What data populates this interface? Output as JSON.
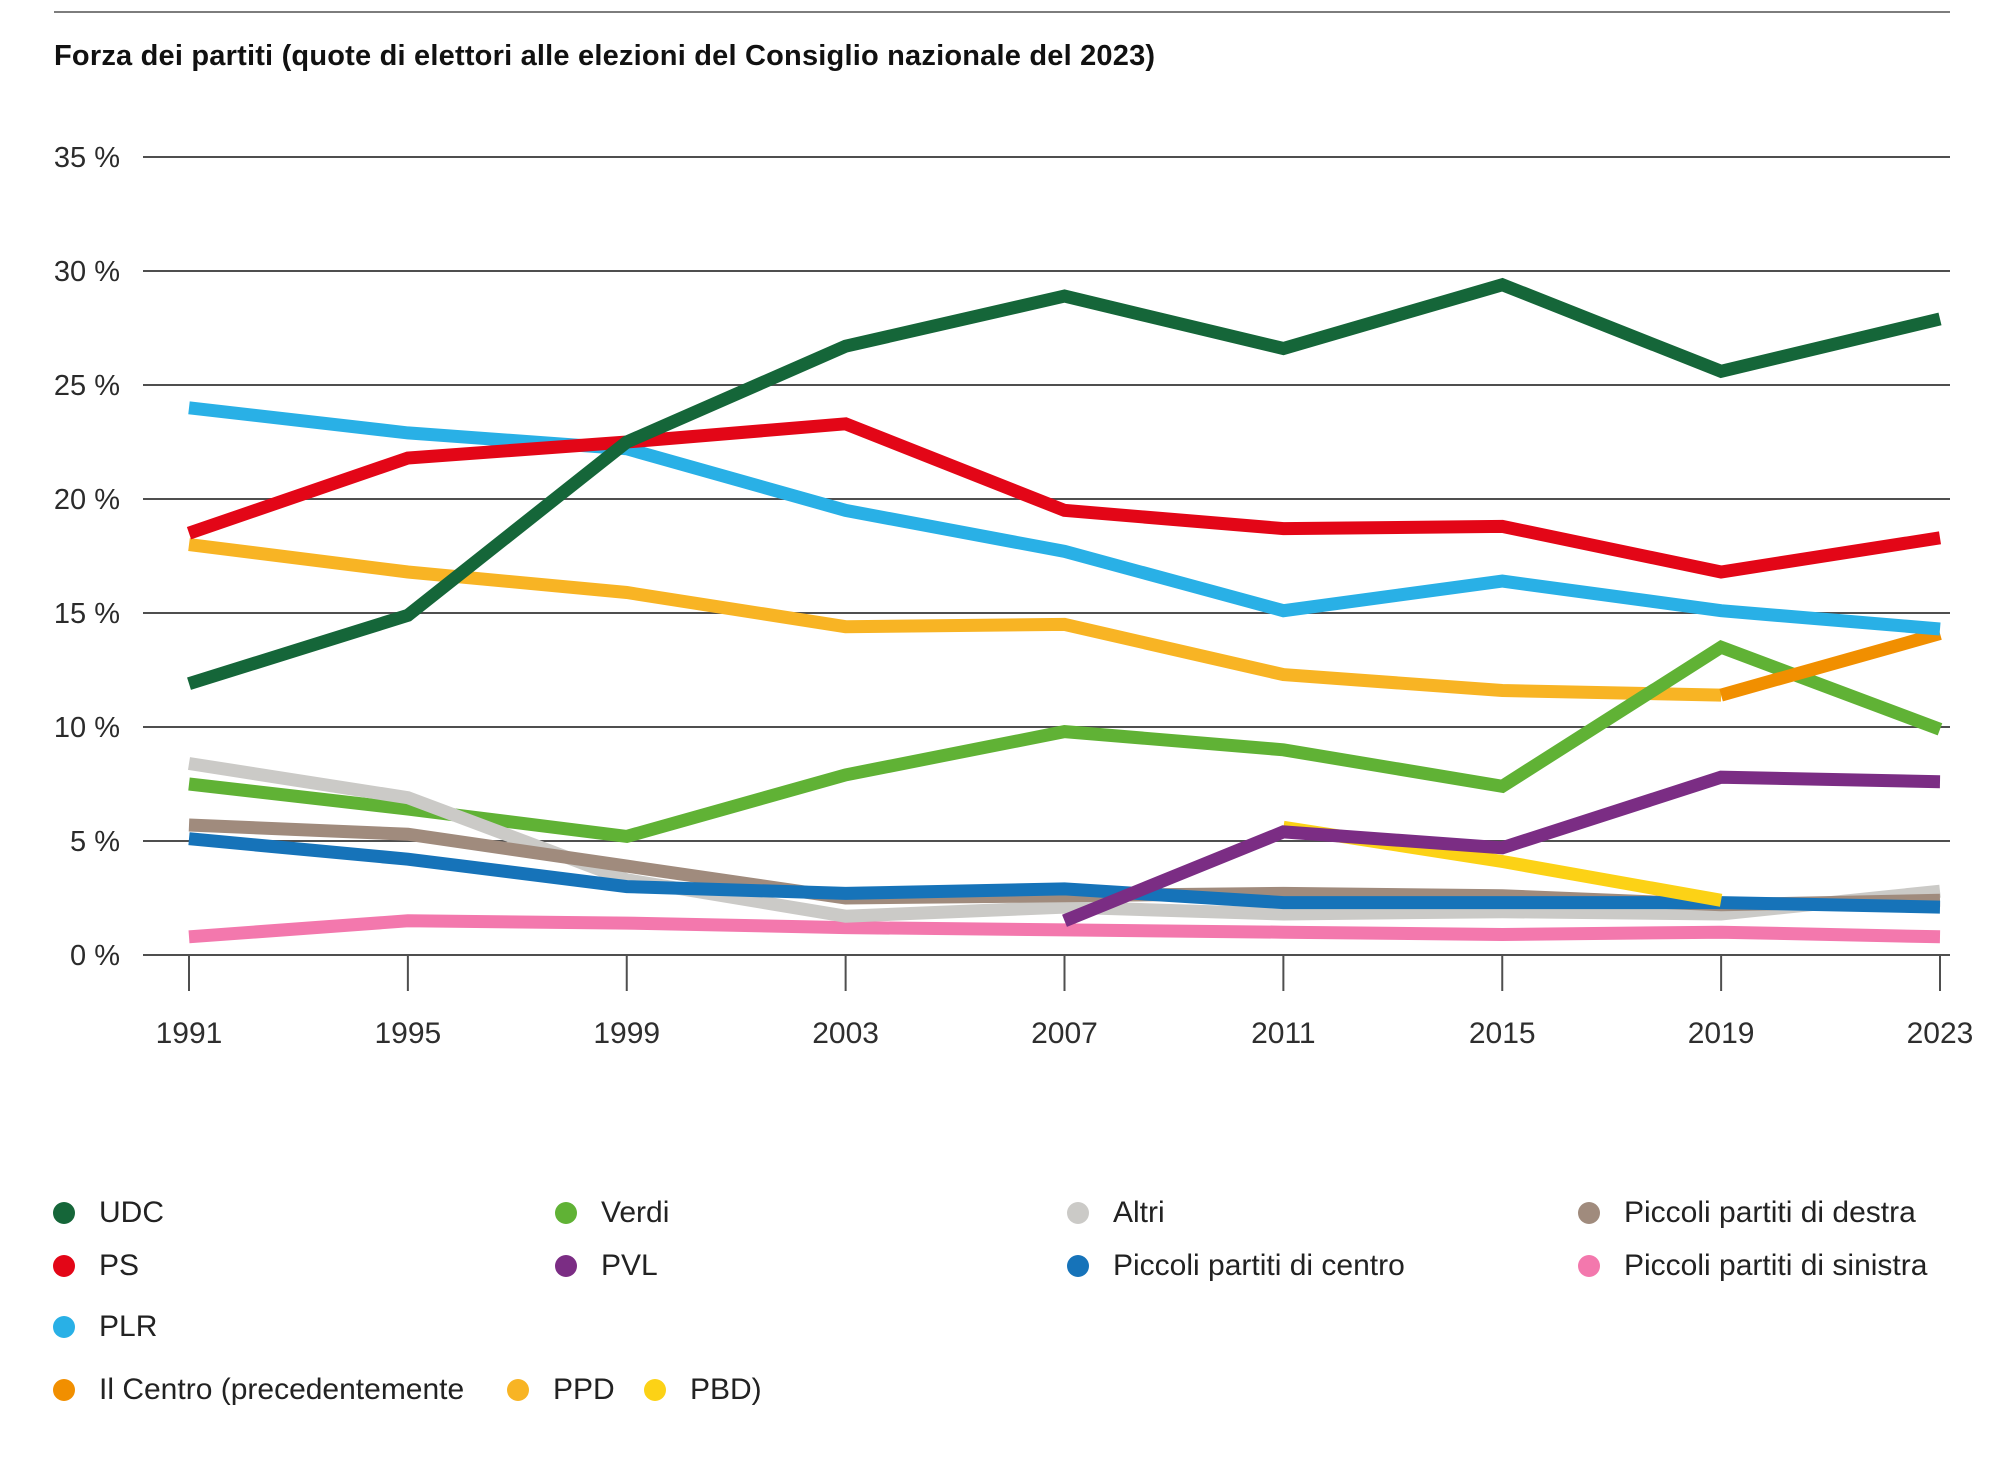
{
  "page": {
    "title": "Forza dei partiti (quote di elettori alle elezioni del Consiglio nazionale del 2023)"
  },
  "chart_data": {
    "type": "line",
    "title": "Forza dei partiti (quote di elettori alle elezioni del Consiglio nazionale del 2023)",
    "xlabel": "",
    "ylabel": "",
    "unit": "%",
    "grid": true,
    "legend_position": "bottom",
    "x": [
      1991,
      1995,
      1999,
      2003,
      2007,
      2011,
      2015,
      2019,
      2023
    ],
    "x_tick_labels": [
      "1991",
      "1995",
      "1999",
      "2003",
      "2007",
      "2011",
      "2015",
      "2019",
      "2023"
    ],
    "y_axis": {
      "min": 0,
      "max": 35,
      "step": 5,
      "tick_labels": [
        "0 %",
        "5 %",
        "10 %",
        "15 %",
        "20 %",
        "25 %",
        "30 %",
        "35 %"
      ]
    },
    "series": [
      {
        "id": "piccoli-sinistra",
        "name": "Piccoli partiti di sinistra",
        "color": "#f378ad",
        "values": [
          0.8,
          1.5,
          1.4,
          1.2,
          1.1,
          1.0,
          0.9,
          1.0,
          0.8
        ]
      },
      {
        "id": "ppd",
        "name": "PPD",
        "color": "#f8b424",
        "values": [
          18.0,
          16.8,
          15.9,
          14.4,
          14.5,
          12.3,
          11.6,
          11.4,
          null
        ]
      },
      {
        "id": "verdi",
        "name": "Verdi",
        "color": "#60b235",
        "values": [
          7.5,
          6.4,
          5.2,
          7.9,
          9.8,
          9.0,
          7.4,
          13.5,
          9.9
        ]
      },
      {
        "id": "altri",
        "name": "Altri",
        "color": "#cbcac7",
        "values": [
          8.4,
          6.9,
          3.3,
          1.7,
          2.1,
          1.8,
          1.9,
          1.8,
          2.8
        ]
      },
      {
        "id": "piccoli-destra",
        "name": "Piccoli partiti di destra",
        "color": "#a08b7d",
        "values": [
          5.7,
          5.3,
          3.9,
          2.5,
          2.6,
          2.7,
          2.6,
          2.2,
          2.4
        ]
      },
      {
        "id": "piccoli-centro",
        "name": "Piccoli partiti di centro",
        "color": "#1673b9",
        "values": [
          5.1,
          4.2,
          3.0,
          2.7,
          2.9,
          2.3,
          2.3,
          2.3,
          2.1
        ]
      },
      {
        "id": "pbd",
        "name": "PBD",
        "color": "#fcd216",
        "values": [
          null,
          null,
          null,
          null,
          null,
          5.6,
          4.1,
          2.4,
          null
        ]
      },
      {
        "id": "pvl",
        "name": "PVL",
        "color": "#7b2d84",
        "values": [
          null,
          null,
          null,
          null,
          1.5,
          5.4,
          4.7,
          7.8,
          7.6
        ]
      },
      {
        "id": "il-centro",
        "name": "Il Centro",
        "color": "#f18f00",
        "values": [
          null,
          null,
          null,
          null,
          null,
          null,
          null,
          11.4,
          14.1
        ]
      },
      {
        "id": "plr",
        "name": "PLR",
        "color": "#29b0e6",
        "values": [
          24.0,
          22.9,
          22.2,
          19.5,
          17.7,
          15.1,
          16.4,
          15.1,
          14.3
        ]
      },
      {
        "id": "ps",
        "name": "PS",
        "color": "#e30617",
        "values": [
          18.5,
          21.8,
          22.5,
          23.3,
          19.5,
          18.7,
          18.8,
          16.8,
          18.3
        ]
      },
      {
        "id": "udc",
        "name": "UDC",
        "color": "#156639",
        "values": [
          11.9,
          14.9,
          22.5,
          26.7,
          28.9,
          26.6,
          29.4,
          25.6,
          27.9
        ]
      }
    ],
    "colors": {
      "gridline": "#4f4f4f",
      "axis_text": "#2b2b2b",
      "top_rule": "#7d7d7d"
    }
  },
  "legend": {
    "udc": {
      "label": "UDC",
      "color": "#156639"
    },
    "ps": {
      "label": "PS",
      "color": "#e30617"
    },
    "plr": {
      "label": "PLR",
      "color": "#29b0e6"
    },
    "centro": {
      "label": "Il Centro (precedentemente",
      "color": "#f18f00"
    },
    "ppd": {
      "label": "PPD",
      "color": "#f8b424"
    },
    "pbd": {
      "label": "PBD)",
      "color": "#fcd216"
    },
    "verdi": {
      "label": "Verdi",
      "color": "#60b235"
    },
    "pvl": {
      "label": "PVL",
      "color": "#7b2d84"
    },
    "altri": {
      "label": "Altri",
      "color": "#cbcac7"
    },
    "piccoli_centro": {
      "label": "Piccoli partiti di centro",
      "color": "#1673b9"
    },
    "piccoli_destra": {
      "label": "Piccoli partiti di destra",
      "color": "#a08b7d"
    },
    "piccoli_sinistra": {
      "label": "Piccoli partiti di sinistra",
      "color": "#f378ad"
    }
  }
}
